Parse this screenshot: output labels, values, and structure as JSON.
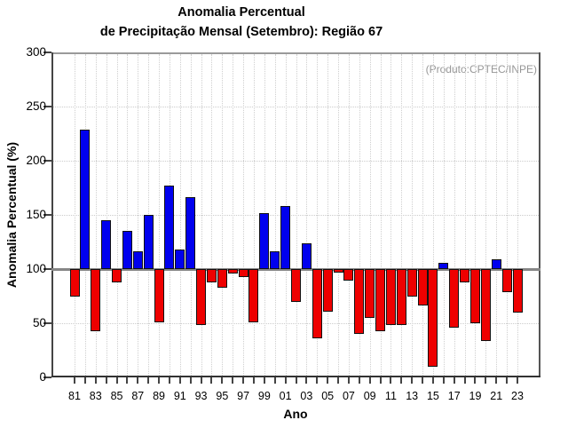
{
  "chart_data": {
    "type": "bar",
    "title_line1": "Anomalia Percentual",
    "title_line2": "de Precipitação Mensal (Setembro): Região 67",
    "annotation": "(Produto:CPTEC/INPE)",
    "xlabel": "Ano",
    "ylabel": "Anomalia Percentual (%)",
    "ylim": [
      0,
      300
    ],
    "ytick_interval": 50,
    "ytick_labels": [
      "0",
      "50",
      "100",
      "150",
      "200",
      "250",
      "300"
    ],
    "baseline_value": 100,
    "grid": "dotted",
    "legend": "none",
    "years": [
      1981,
      1982,
      1983,
      1984,
      1985,
      1986,
      1987,
      1988,
      1989,
      1990,
      1991,
      1992,
      1993,
      1994,
      1995,
      1996,
      1997,
      1998,
      1999,
      2000,
      2001,
      2002,
      2003,
      2004,
      2005,
      2006,
      2007,
      2008,
      2009,
      2010,
      2011,
      2012,
      2013,
      2014,
      2015,
      2016,
      2017,
      2018,
      2019,
      2020,
      2021,
      2022,
      2023
    ],
    "values": [
      75,
      229,
      43,
      145,
      88,
      135,
      116,
      150,
      51,
      177,
      118,
      166,
      48,
      88,
      83,
      96,
      93,
      51,
      152,
      116,
      158,
      70,
      124,
      36,
      61,
      97,
      89,
      40,
      55,
      43,
      48,
      48,
      75,
      66,
      10,
      106,
      46,
      88,
      50,
      34,
      109,
      79,
      60
    ],
    "xtick_labels": [
      "81",
      "83",
      "85",
      "87",
      "89",
      "91",
      "93",
      "95",
      "97",
      "99",
      "01",
      "03",
      "05",
      "07",
      "09",
      "11",
      "13",
      "15",
      "17",
      "19",
      "21",
      "23"
    ],
    "colors": {
      "above_baseline": "#0000EE",
      "below_baseline": "#EE0000",
      "bar_outline": "#111111",
      "baseline_line": "#868686",
      "annotation_text": "#979797"
    }
  }
}
